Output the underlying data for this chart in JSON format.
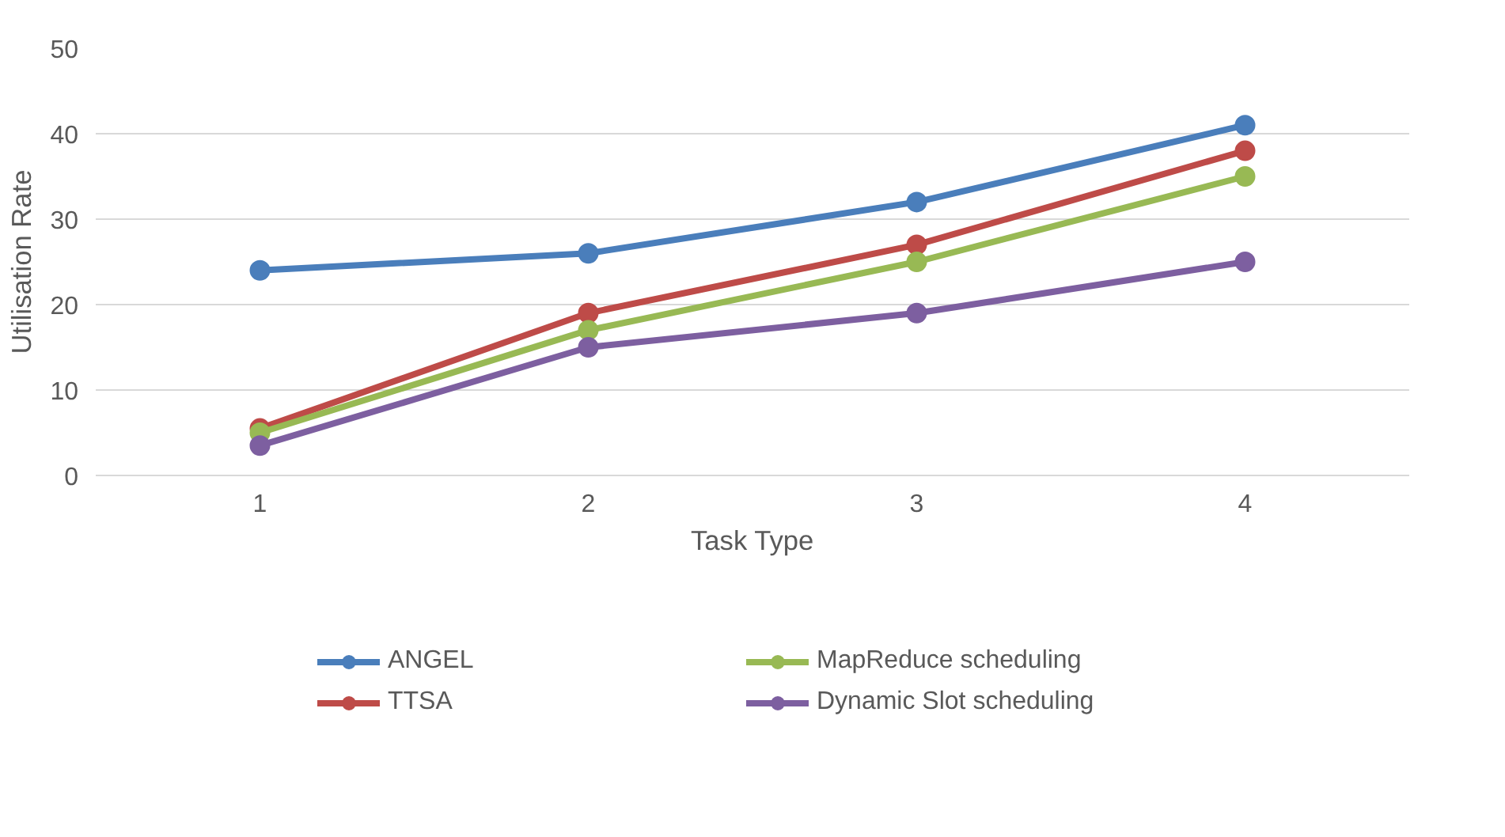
{
  "chart_data": {
    "type": "line",
    "xlabel": "Task Type",
    "ylabel": "Utilisation Rate",
    "categories": [
      "1",
      "2",
      "3",
      "4"
    ],
    "ylim": [
      0,
      50
    ],
    "yticks": [
      0,
      10,
      20,
      30,
      40,
      50
    ],
    "grid": "y",
    "legend": "bottom",
    "marker": "circle",
    "line_style": "solid",
    "series": [
      {
        "name": "ANGEL",
        "color": "#4a7ebb",
        "values": [
          24,
          26,
          32,
          41
        ]
      },
      {
        "name": "TTSA",
        "color": "#be4b48",
        "values": [
          5.5,
          19,
          27,
          38
        ]
      },
      {
        "name": "MapReduce scheduling",
        "color": "#98b954",
        "values": [
          5,
          17,
          25,
          35
        ]
      },
      {
        "name": "Dynamic Slot scheduling",
        "color": "#7d5fa0",
        "values": [
          3.5,
          15,
          19,
          25
        ]
      }
    ]
  }
}
